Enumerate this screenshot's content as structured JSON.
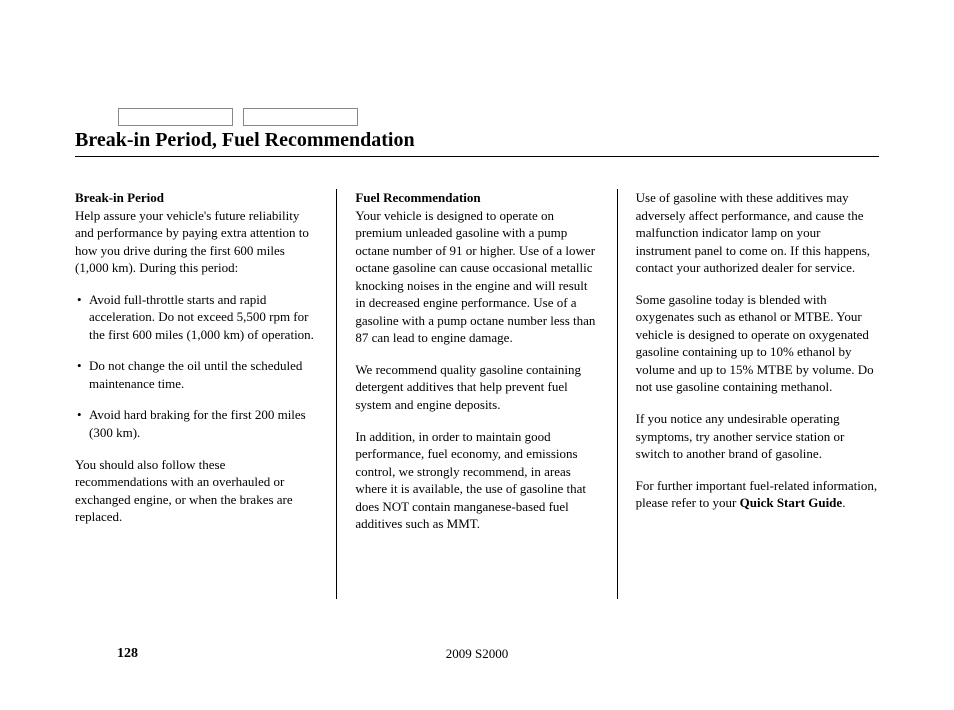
{
  "page": {
    "title": "Break-in Period, Fuel Recommendation",
    "page_number": "128",
    "footer_center": "2009  S2000",
    "tab_count": 2
  },
  "col1": {
    "heading": "Break-in Period",
    "intro": "Help assure your vehicle's future reliability and performance by paying extra attention to how you drive during the first 600 miles (1,000 km). During this period:",
    "bullets": [
      "Avoid full-throttle starts and rapid acceleration. Do not exceed 5,500 rpm for the first 600 miles (1,000 km) of operation.",
      "Do not change the oil until the scheduled maintenance time.",
      "Avoid hard braking for the first 200 miles (300 km)."
    ],
    "outro": "You should also follow these recommendations with an overhauled or exchanged engine, or when the brakes are replaced."
  },
  "col2": {
    "heading": "Fuel Recommendation",
    "p1": "Your vehicle is designed to operate on premium unleaded gasoline with a pump octane number of 91 or higher. Use of a lower octane gasoline can cause occasional metallic knocking noises in the engine and will result in decreased engine performance. Use of a gasoline with a pump octane number less than 87 can lead to engine damage.",
    "p2": "We recommend quality gasoline containing detergent additives that help prevent fuel system and engine deposits.",
    "p3": "In addition, in order to maintain good performance, fuel economy, and emissions control, we strongly recommend, in areas where it is available, the use of gasoline that does NOT contain manganese-based fuel additives such as MMT."
  },
  "col3": {
    "p1": "Use of gasoline with these additives may adversely affect performance, and cause the malfunction indicator lamp on your instrument panel to come on. If this happens, contact your authorized dealer for service.",
    "p2": "Some gasoline today is blended with oxygenates such as ethanol or MTBE. Your vehicle is designed to operate on oxygenated gasoline containing up to 10% ethanol by volume and up to 15% MTBE by volume. Do not use gasoline containing methanol.",
    "p3": "If you notice any undesirable operating symptoms, try another service station or switch to another brand of gasoline.",
    "p4_prefix": "For further important fuel-related information, please refer to your ",
    "p4_bold": "Quick Start Guide",
    "p4_suffix": "."
  },
  "style": {
    "background_color": "#ffffff",
    "text_color": "#000000",
    "divider_color": "#000000",
    "body_fontsize": 13,
    "title_fontsize": 20,
    "font_family": "Georgia, serif"
  }
}
